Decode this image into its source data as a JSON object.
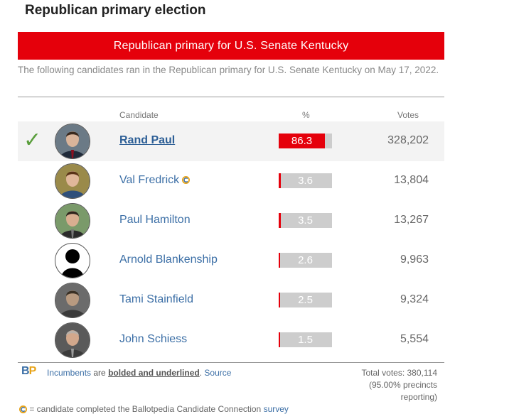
{
  "heading": "Republican primary election",
  "banner": "Republican primary for U.S. Senate Kentucky",
  "intro": "The following candidates ran in the Republican primary for U.S. Senate Kentucky on May 17, 2022.",
  "columns": {
    "candidate": "Candidate",
    "percent": "%",
    "votes": "Votes"
  },
  "colors": {
    "republican_red": "#e5000b",
    "link_blue": "#3c6fa6",
    "winner_check": "#5a9e3c",
    "bar_bg": "#cdcdcd"
  },
  "candidates": [
    {
      "name": "Rand Paul",
      "percent": "86.3",
      "percent_value": 86.3,
      "votes": "328,202",
      "winner": true,
      "incumbent": true,
      "cc_icon": false,
      "check_icon": "checkmark-icon"
    },
    {
      "name": "Val Fredrick",
      "percent": "3.6",
      "percent_value": 3.6,
      "votes": "13,804",
      "winner": false,
      "incumbent": false,
      "cc_icon": true
    },
    {
      "name": "Paul Hamilton",
      "percent": "3.5",
      "percent_value": 3.5,
      "votes": "13,267",
      "winner": false,
      "incumbent": false,
      "cc_icon": false
    },
    {
      "name": "Arnold Blankenship",
      "percent": "2.6",
      "percent_value": 2.6,
      "votes": "9,963",
      "winner": false,
      "incumbent": false,
      "cc_icon": false
    },
    {
      "name": "Tami Stainfield",
      "percent": "2.5",
      "percent_value": 2.5,
      "votes": "9,324",
      "winner": false,
      "incumbent": false,
      "cc_icon": false
    },
    {
      "name": "John Schiess",
      "percent": "1.5",
      "percent_value": 1.5,
      "votes": "5,554",
      "winner": false,
      "incumbent": false,
      "cc_icon": false
    }
  ],
  "footer": {
    "logo_b": "B",
    "logo_p": "P",
    "incumbents_link": "Incumbents",
    "are_text": " are ",
    "bolded_text": "bolded and underlined",
    "period": ". ",
    "source_link": "Source",
    "total_line1": "Total votes: 380,114",
    "total_line2": "(95.00% precincts",
    "total_line3": "reporting)",
    "cc_note_text": " = candidate completed the Ballotpedia Candidate Connection ",
    "cc_note_link": "survey"
  }
}
